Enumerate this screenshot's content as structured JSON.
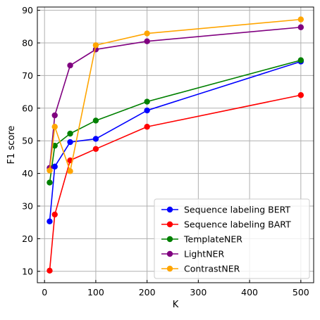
{
  "chart_data": {
    "type": "line",
    "title": "",
    "xlabel": "K",
    "ylabel": "F1 score",
    "xlim": [
      -14,
      525
    ],
    "ylim": [
      6.5,
      91
    ],
    "xticks": [
      0,
      100,
      200,
      300,
      400,
      500
    ],
    "yticks": [
      10,
      20,
      30,
      40,
      50,
      60,
      70,
      80,
      90
    ],
    "grid": true,
    "legend_position": "lower-right",
    "x": [
      10,
      20,
      50,
      100,
      200,
      500
    ],
    "series": [
      {
        "name": "Sequence labeling BERT",
        "color": "#0000ff",
        "values": [
          25.3,
          42.1,
          49.6,
          50.6,
          59.3,
          74.3
        ]
      },
      {
        "name": "Sequence labeling BART",
        "color": "#ff0000",
        "values": [
          10.2,
          27.4,
          44.0,
          47.5,
          54.3,
          64.0
        ]
      },
      {
        "name": "TemplateNER",
        "color": "#008000",
        "values": [
          37.2,
          48.5,
          52.2,
          56.2,
          62.0,
          74.7
        ]
      },
      {
        "name": "LightNER",
        "color": "#800080",
        "values": [
          41.7,
          57.8,
          73.1,
          78.0,
          80.5,
          84.8
        ]
      },
      {
        "name": "ContrastNER",
        "color": "#ffa500",
        "values": [
          40.9,
          54.3,
          40.7,
          79.3,
          82.9,
          87.2
        ]
      }
    ]
  }
}
